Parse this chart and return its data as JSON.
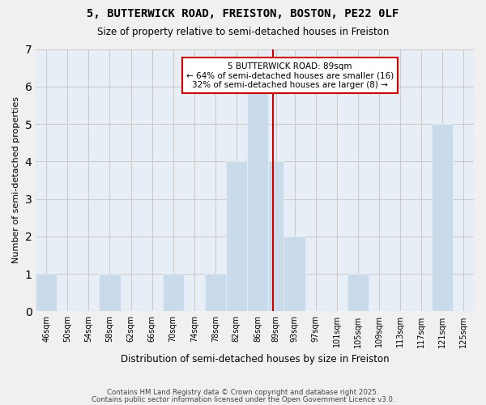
{
  "title": "5, BUTTERWICK ROAD, FREISTON, BOSTON, PE22 0LF",
  "subtitle": "Size of property relative to semi-detached houses in Freiston",
  "xlabel": "Distribution of semi-detached houses by size in Freiston",
  "ylabel": "Number of semi-detached properties",
  "bin_labels": [
    "46sqm",
    "50sqm",
    "54sqm",
    "58sqm",
    "62sqm",
    "66sqm",
    "70sqm",
    "74sqm",
    "78sqm",
    "82sqm",
    "86sqm",
    "89sqm",
    "93sqm",
    "97sqm",
    "101sqm",
    "105sqm",
    "109sqm",
    "113sqm",
    "117sqm",
    "121sqm",
    "125sqm"
  ],
  "bin_edges": [
    44,
    48,
    52,
    56,
    60,
    64,
    68,
    72,
    76,
    80,
    84,
    88,
    91,
    95,
    99,
    103,
    107,
    111,
    115,
    119,
    123,
    127
  ],
  "bin_widths": [
    4,
    4,
    4,
    4,
    4,
    4,
    4,
    4,
    4,
    4,
    4,
    3,
    4,
    4,
    4,
    4,
    4,
    4,
    4,
    4,
    4
  ],
  "counts": [
    1,
    0,
    0,
    1,
    0,
    0,
    1,
    0,
    1,
    4,
    6,
    4,
    2,
    0,
    0,
    1,
    0,
    0,
    0,
    5,
    0
  ],
  "bar_color": "#c9daea",
  "bar_edgecolor": "#ffffff",
  "property_line_x": 89,
  "annotation_title": "5 BUTTERWICK ROAD: 89sqm",
  "annotation_line1": "← 64% of semi-detached houses are smaller (16)",
  "annotation_line2": "32% of semi-detached houses are larger (8) →",
  "annotation_box_facecolor": "#ffffff",
  "annotation_box_edgecolor": "#cc0000",
  "property_line_color": "#cc0000",
  "ylim": [
    0,
    7
  ],
  "yticks": [
    0,
    1,
    2,
    3,
    4,
    5,
    6,
    7
  ],
  "footer_line1": "Contains HM Land Registry data © Crown copyright and database right 2025.",
  "footer_line2": "Contains public sector information licensed under the Open Government Licence v3.0.",
  "background_color": "#f0f0f0",
  "plot_background_color": "#e8eef5"
}
